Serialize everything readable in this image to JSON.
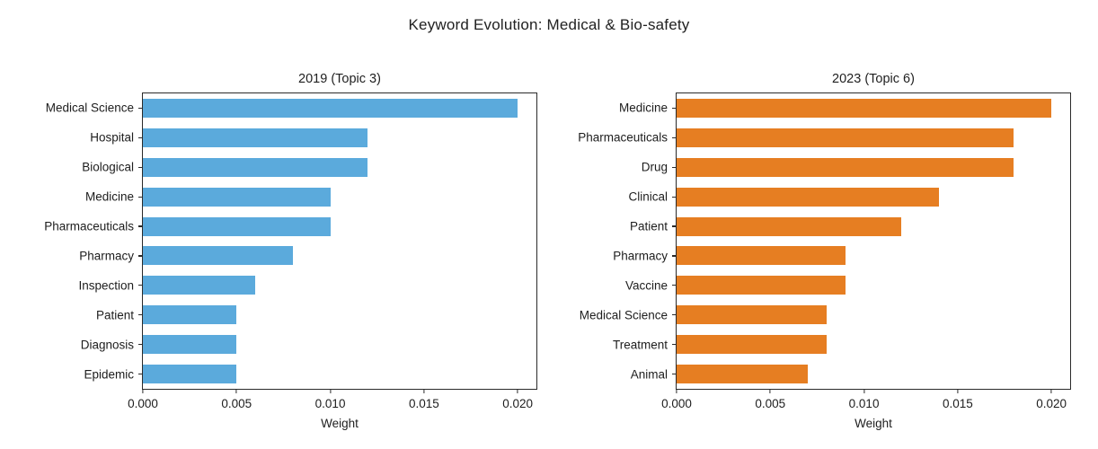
{
  "figure_title": "Keyword Evolution: Medical & Bio-safety",
  "colors": {
    "bar_2019": "#5BAADC",
    "bar_2023": "#E67E22",
    "spine": "#2a2a2a",
    "text": "#1d1d1d"
  },
  "chart_data": [
    {
      "type": "bar",
      "orientation": "horizontal",
      "title": "2019 (Topic 3)",
      "categories": [
        "Medical Science",
        "Hospital",
        "Biological",
        "Medicine",
        "Pharmaceuticals",
        "Pharmacy",
        "Inspection",
        "Patient",
        "Diagnosis",
        "Epidemic"
      ],
      "values": [
        0.02,
        0.012,
        0.012,
        0.01,
        0.01,
        0.008,
        0.006,
        0.005,
        0.005,
        0.005
      ],
      "bar_color": "#5BAADC",
      "xlabel": "Weight",
      "ylabel": "",
      "xticks": [
        0.0,
        0.005,
        0.01,
        0.015,
        0.02
      ],
      "xtick_labels": [
        "0.000",
        "0.005",
        "0.010",
        "0.015",
        "0.020"
      ],
      "xlim": [
        0,
        0.021
      ],
      "grid": false,
      "legend": null
    },
    {
      "type": "bar",
      "orientation": "horizontal",
      "title": "2023 (Topic 6)",
      "categories": [
        "Medicine",
        "Pharmaceuticals",
        "Drug",
        "Clinical",
        "Patient",
        "Pharmacy",
        "Vaccine",
        "Medical Science",
        "Treatment",
        "Animal"
      ],
      "values": [
        0.02,
        0.018,
        0.018,
        0.014,
        0.012,
        0.009,
        0.009,
        0.008,
        0.008,
        0.007
      ],
      "bar_color": "#E67E22",
      "xlabel": "Weight",
      "ylabel": "",
      "xticks": [
        0.0,
        0.005,
        0.01,
        0.015,
        0.02
      ],
      "xtick_labels": [
        "0.000",
        "0.005",
        "0.010",
        "0.015",
        "0.020"
      ],
      "xlim": [
        0,
        0.021
      ],
      "grid": false,
      "legend": null
    }
  ]
}
